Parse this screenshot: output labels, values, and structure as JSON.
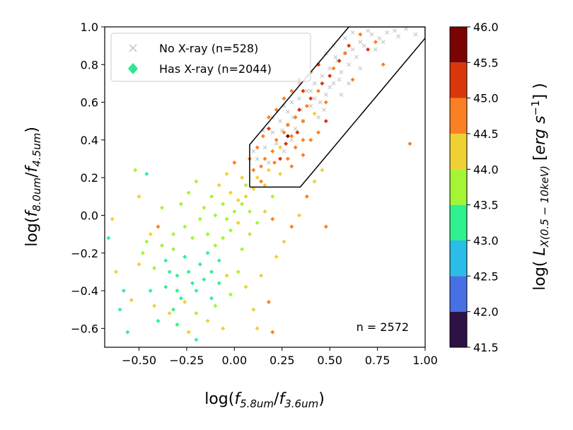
{
  "chart_data": {
    "type": "scatter",
    "title": "",
    "xlabel": "log(f_5.8um / f_3.6um)",
    "ylabel": "log(f_8.0um / f_4.5um)",
    "xlim": [
      -0.68,
      1.0
    ],
    "ylim": [
      -0.7,
      1.0
    ],
    "x_ticks": [
      -0.5,
      -0.25,
      0.0,
      0.25,
      0.5,
      0.75,
      1.0
    ],
    "x_tick_labels": [
      "−0.50",
      "−0.25",
      "0.00",
      "0.25",
      "0.50",
      "0.75",
      "1.00"
    ],
    "y_ticks": [
      -0.6,
      -0.4,
      -0.2,
      0.0,
      0.2,
      0.4,
      0.6,
      0.8,
      1.0
    ],
    "y_tick_labels": [
      "−0.6",
      "−0.4",
      "−0.2",
      "0.0",
      "0.2",
      "0.4",
      "0.6",
      "0.8",
      "1.0"
    ],
    "grid": false,
    "legend_position": "top-left",
    "annotation": "n = 2572",
    "legend": [
      {
        "label": "No X-ray (n=528)",
        "marker": "x",
        "color": "#c8c8c8"
      },
      {
        "label": "Has X-ray (n=2044)",
        "marker": "diamond",
        "color": "#2ee88e"
      }
    ],
    "selection_wedge": {
      "vertices": [
        [
          0.08,
          0.15
        ],
        [
          0.08,
          0.375
        ],
        [
          0.6,
          1.0
        ],
        [
          1.0,
          1.0
        ],
        [
          1.0,
          0.94
        ],
        [
          0.345,
          0.15
        ],
        [
          0.08,
          0.15
        ]
      ],
      "color": "#000000"
    },
    "colorbar": {
      "label": "log( L_X(0.5-10keV) [erg s^-1] )",
      "min": 41.5,
      "max": 46.0,
      "ticks": [
        41.5,
        42.0,
        42.5,
        43.0,
        43.5,
        44.0,
        44.5,
        45.0,
        45.5,
        46.0
      ],
      "tick_labels": [
        "41.5",
        "42.0",
        "42.5",
        "43.0",
        "43.5",
        "44.0",
        "44.5",
        "45.0",
        "45.5",
        "46.0"
      ],
      "bins": [
        {
          "from": 41.5,
          "to": 42.0,
          "color": "#2d1245"
        },
        {
          "from": 42.0,
          "to": 42.5,
          "color": "#4670e4"
        },
        {
          "from": 42.5,
          "to": 43.0,
          "color": "#29bde8"
        },
        {
          "from": 43.0,
          "to": 43.5,
          "color": "#2ff18f"
        },
        {
          "from": 43.5,
          "to": 44.0,
          "color": "#a4f533"
        },
        {
          "from": 44.0,
          "to": 44.5,
          "color": "#efd035"
        },
        {
          "from": 44.5,
          "to": 45.0,
          "color": "#fb8023"
        },
        {
          "from": 45.0,
          "to": 45.5,
          "color": "#d9370b"
        },
        {
          "from": 45.5,
          "to": 46.0,
          "color": "#7a0403"
        }
      ]
    },
    "series": [
      {
        "name": "No X-ray (n=528)",
        "marker": "x",
        "color": "#c8c8c8",
        "points": [
          [
            0.12,
            0.3
          ],
          [
            0.16,
            0.36
          ],
          [
            0.2,
            0.44
          ],
          [
            0.24,
            0.5
          ],
          [
            0.28,
            0.55
          ],
          [
            0.3,
            0.4
          ],
          [
            0.26,
            0.58
          ],
          [
            0.34,
            0.62
          ],
          [
            0.38,
            0.66
          ],
          [
            0.4,
            0.58
          ],
          [
            0.42,
            0.7
          ],
          [
            0.44,
            0.52
          ],
          [
            0.46,
            0.74
          ],
          [
            0.48,
            0.64
          ],
          [
            0.5,
            0.78
          ],
          [
            0.52,
            0.7
          ],
          [
            0.54,
            0.82
          ],
          [
            0.56,
            0.76
          ],
          [
            0.58,
            0.86
          ],
          [
            0.6,
            0.8
          ],
          [
            0.62,
            0.88
          ],
          [
            0.64,
            0.84
          ],
          [
            0.66,
            0.92
          ],
          [
            0.68,
            0.9
          ],
          [
            0.72,
            0.96
          ],
          [
            0.76,
            0.94
          ],
          [
            0.8,
            0.97
          ],
          [
            0.84,
            0.98
          ],
          [
            0.9,
            0.99
          ],
          [
            0.95,
            0.96
          ],
          [
            0.22,
            0.38
          ],
          [
            0.18,
            0.28
          ],
          [
            0.32,
            0.46
          ],
          [
            0.36,
            0.5
          ],
          [
            0.3,
            0.6
          ],
          [
            0.28,
            0.48
          ],
          [
            0.4,
            0.66
          ],
          [
            0.45,
            0.6
          ],
          [
            0.5,
            0.68
          ],
          [
            0.55,
            0.72
          ],
          [
            0.48,
            0.86
          ],
          [
            0.52,
            0.9
          ],
          [
            0.58,
            0.94
          ],
          [
            0.62,
            0.97
          ],
          [
            0.7,
            0.98
          ],
          [
            0.44,
            0.8
          ],
          [
            0.42,
            0.62
          ],
          [
            0.35,
            0.56
          ],
          [
            0.25,
            0.45
          ],
          [
            0.2,
            0.52
          ],
          [
            0.15,
            0.45
          ],
          [
            0.1,
            0.34
          ],
          [
            0.34,
            0.7
          ],
          [
            0.38,
            0.74
          ],
          [
            0.56,
            0.64
          ],
          [
            0.6,
            0.7
          ],
          [
            0.66,
            0.78
          ],
          [
            0.74,
            0.88
          ],
          [
            0.78,
            0.92
          ],
          [
            0.86,
            0.95
          ],
          [
            0.26,
            0.34
          ],
          [
            0.31,
            0.52
          ],
          [
            0.47,
            0.56
          ],
          [
            0.53,
            0.84
          ]
        ]
      },
      {
        "name": "Has X-ray (n=2044)",
        "marker": "diamond",
        "points": [
          [
            -0.66,
            -0.12,
            43.2
          ],
          [
            -0.64,
            -0.02,
            44.2
          ],
          [
            -0.62,
            -0.3,
            44.0
          ],
          [
            -0.6,
            -0.5,
            43.3
          ],
          [
            -0.58,
            -0.4,
            43.4
          ],
          [
            -0.56,
            -0.62,
            43.2
          ],
          [
            -0.54,
            -0.45,
            44.3
          ],
          [
            -0.52,
            0.24,
            43.7
          ],
          [
            -0.5,
            0.1,
            44.3
          ],
          [
            -0.48,
            -0.2,
            43.9
          ],
          [
            -0.46,
            0.22,
            43.2
          ],
          [
            -0.44,
            -0.1,
            44.1
          ],
          [
            -0.42,
            -0.28,
            43.8
          ],
          [
            -0.4,
            -0.06,
            44.6
          ],
          [
            -0.38,
            0.04,
            43.6
          ],
          [
            -0.36,
            -0.38,
            43.3
          ],
          [
            -0.34,
            -0.52,
            44.2
          ],
          [
            -0.32,
            -0.18,
            43.9
          ],
          [
            -0.3,
            -0.32,
            43.4
          ],
          [
            -0.28,
            -0.44,
            43.1
          ],
          [
            -0.26,
            -0.22,
            43.2
          ],
          [
            -0.24,
            -0.3,
            43.3
          ],
          [
            -0.22,
            -0.36,
            43.1
          ],
          [
            -0.2,
            -0.4,
            43.3
          ],
          [
            -0.18,
            -0.26,
            43.2
          ],
          [
            -0.16,
            -0.34,
            43.0
          ],
          [
            -0.14,
            -0.2,
            43.4
          ],
          [
            -0.12,
            -0.3,
            43.2
          ],
          [
            -0.1,
            -0.16,
            43.6
          ],
          [
            -0.08,
            -0.24,
            43.4
          ],
          [
            -0.06,
            -0.12,
            43.8
          ],
          [
            -0.04,
            -0.02,
            43.7
          ],
          [
            -0.02,
            -0.08,
            43.9
          ],
          [
            0.0,
            0.02,
            43.8
          ],
          [
            0.02,
            -0.04,
            44.0
          ],
          [
            0.04,
            0.06,
            43.9
          ],
          [
            0.06,
            0.1,
            44.1
          ],
          [
            0.08,
            0.02,
            43.8
          ],
          [
            0.1,
            0.14,
            44.2
          ],
          [
            0.12,
            0.2,
            44.4
          ],
          [
            0.14,
            0.26,
            44.6
          ],
          [
            0.16,
            0.3,
            44.5
          ],
          [
            0.18,
            0.24,
            44.3
          ],
          [
            0.2,
            0.34,
            44.7
          ],
          [
            0.22,
            0.4,
            44.8
          ],
          [
            0.24,
            0.36,
            44.4
          ],
          [
            0.26,
            0.44,
            44.6
          ],
          [
            0.28,
            0.48,
            44.9
          ],
          [
            0.3,
            0.42,
            44.5
          ],
          [
            0.32,
            0.52,
            44.7
          ],
          [
            0.34,
            0.56,
            45.0
          ],
          [
            0.36,
            0.5,
            44.6
          ],
          [
            0.38,
            0.58,
            44.8
          ],
          [
            0.4,
            0.62,
            45.1
          ],
          [
            0.42,
            0.54,
            44.4
          ],
          [
            0.44,
            0.66,
            44.9
          ],
          [
            0.46,
            0.7,
            45.2
          ],
          [
            0.48,
            0.6,
            44.7
          ],
          [
            0.5,
            0.74,
            45.0
          ],
          [
            0.52,
            0.78,
            44.8
          ],
          [
            0.55,
            0.82,
            45.1
          ],
          [
            0.58,
            0.86,
            44.9
          ],
          [
            0.6,
            0.9,
            45.0
          ],
          [
            0.62,
            0.72,
            44.6
          ],
          [
            0.66,
            0.96,
            44.8
          ],
          [
            0.7,
            0.88,
            45.2
          ],
          [
            0.74,
            0.92,
            44.6
          ],
          [
            0.78,
            0.8,
            44.9
          ],
          [
            0.92,
            0.38,
            44.8
          ],
          [
            -0.3,
            -0.58,
            43.4
          ],
          [
            -0.24,
            -0.62,
            44.3
          ],
          [
            -0.2,
            -0.66,
            43.3
          ],
          [
            -0.14,
            -0.56,
            44.2
          ],
          [
            -0.1,
            -0.48,
            43.8
          ],
          [
            -0.06,
            -0.6,
            44.0
          ],
          [
            -0.02,
            -0.42,
            43.6
          ],
          [
            0.02,
            -0.3,
            43.8
          ],
          [
            0.06,
            -0.38,
            44.2
          ],
          [
            0.1,
            -0.5,
            44.4
          ],
          [
            0.14,
            -0.32,
            44.1
          ],
          [
            0.18,
            -0.46,
            44.6
          ],
          [
            0.22,
            -0.22,
            44.2
          ],
          [
            0.26,
            -0.14,
            44.0
          ],
          [
            0.3,
            -0.06,
            44.5
          ],
          [
            0.34,
            0.0,
            44.3
          ],
          [
            0.38,
            0.1,
            44.6
          ],
          [
            0.42,
            0.18,
            44.4
          ],
          [
            0.46,
            0.24,
            44.0
          ],
          [
            0.48,
            -0.06,
            44.7
          ],
          [
            0.12,
            -0.6,
            44.3
          ],
          [
            0.2,
            -0.62,
            44.8
          ],
          [
            -0.44,
            -0.4,
            43.1
          ],
          [
            -0.4,
            -0.56,
            43.2
          ],
          [
            -0.36,
            -0.24,
            43.3
          ],
          [
            -0.32,
            -0.1,
            43.5
          ],
          [
            -0.28,
            0.06,
            43.6
          ],
          [
            -0.24,
            0.12,
            43.8
          ],
          [
            -0.2,
            0.18,
            43.7
          ],
          [
            -0.16,
            0.04,
            43.5
          ],
          [
            -0.12,
            0.1,
            43.9
          ],
          [
            -0.08,
            0.16,
            44.0
          ],
          [
            -0.04,
            0.22,
            44.3
          ],
          [
            0.0,
            0.28,
            44.5
          ],
          [
            0.04,
            0.2,
            44.2
          ],
          [
            0.08,
            0.3,
            44.6
          ],
          [
            0.12,
            0.36,
            44.8
          ],
          [
            0.16,
            0.16,
            44.0
          ],
          [
            0.2,
            0.1,
            43.8
          ],
          [
            0.24,
            0.22,
            44.3
          ],
          [
            0.28,
            0.3,
            44.6
          ],
          [
            0.32,
            0.36,
            44.8
          ],
          [
            0.36,
            0.32,
            44.5
          ],
          [
            0.4,
            0.4,
            44.9
          ],
          [
            0.44,
            0.44,
            44.7
          ],
          [
            0.48,
            0.5,
            45.0
          ],
          [
            0.15,
            0.42,
            44.9
          ],
          [
            0.18,
            0.46,
            45.2
          ],
          [
            0.21,
            0.28,
            44.6
          ],
          [
            0.24,
            0.3,
            45.1
          ],
          [
            0.27,
            0.38,
            45.0
          ],
          [
            0.3,
            0.26,
            44.7
          ],
          [
            0.33,
            0.44,
            45.3
          ],
          [
            0.36,
            0.4,
            44.9
          ],
          [
            0.1,
            0.24,
            44.8
          ],
          [
            0.14,
            0.18,
            44.5
          ],
          [
            -0.5,
            -0.26,
            44.4
          ],
          [
            -0.46,
            -0.14,
            43.9
          ],
          [
            -0.42,
            -0.48,
            44.1
          ],
          [
            -0.38,
            -0.16,
            43.7
          ],
          [
            -0.34,
            -0.3,
            43.2
          ],
          [
            -0.3,
            -0.4,
            43.1
          ],
          [
            -0.26,
            -0.06,
            43.6
          ],
          [
            -0.22,
            -0.12,
            43.5
          ],
          [
            -0.18,
            -0.02,
            43.8
          ],
          [
            -0.14,
            -0.1,
            43.6
          ],
          [
            -0.1,
            0.0,
            43.9
          ],
          [
            -0.06,
            0.06,
            43.7
          ],
          [
            -0.02,
            0.12,
            44.0
          ],
          [
            0.02,
            0.08,
            44.2
          ],
          [
            0.06,
            0.16,
            43.9
          ],
          [
            0.26,
            0.62,
            44.6
          ],
          [
            0.3,
            0.66,
            44.9
          ],
          [
            0.34,
            0.72,
            45.2
          ],
          [
            0.22,
            0.56,
            44.5
          ],
          [
            0.18,
            0.52,
            44.8
          ],
          [
            0.4,
            0.76,
            44.7
          ],
          [
            0.44,
            0.8,
            45.0
          ],
          [
            0.36,
            0.66,
            45.4
          ],
          [
            0.28,
            0.42,
            45.7
          ],
          [
            -0.12,
            -0.44,
            43.2
          ],
          [
            -0.2,
            -0.52,
            43.9
          ],
          [
            -0.26,
            -0.46,
            44.0
          ],
          [
            -0.32,
            -0.5,
            43.3
          ],
          [
            -0.08,
            -0.36,
            43.4
          ],
          [
            0.04,
            -0.18,
            43.9
          ],
          [
            0.08,
            -0.1,
            44.1
          ],
          [
            0.12,
            -0.04,
            43.8
          ],
          [
            0.16,
            0.02,
            44.3
          ],
          [
            0.2,
            -0.02,
            44.5
          ],
          [
            -0.04,
            -0.32,
            44.4
          ]
        ]
      }
    ]
  }
}
